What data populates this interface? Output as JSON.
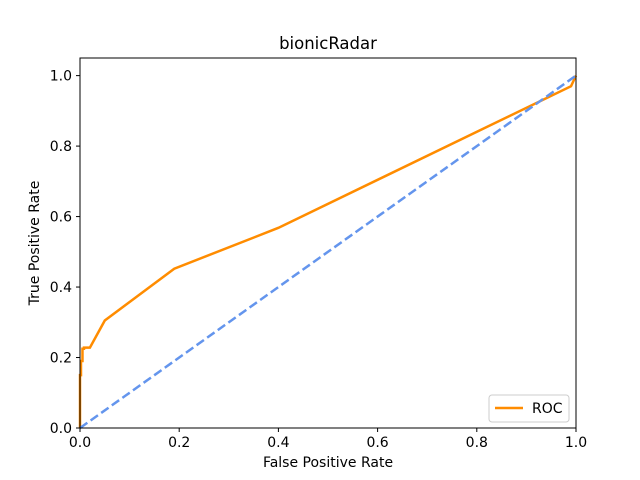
{
  "chart_data": {
    "type": "line",
    "title": "bionicRadar",
    "xlabel": "False Positive Rate",
    "ylabel": "True Positive Rate",
    "xlim": [
      0.0,
      1.0
    ],
    "ylim": [
      0.0,
      1.05
    ],
    "xticks": [
      "0.0",
      "0.2",
      "0.4",
      "0.6",
      "0.8",
      "1.0"
    ],
    "yticks": [
      "0.0",
      "0.2",
      "0.4",
      "0.6",
      "0.8",
      "1.0"
    ],
    "grid": false,
    "legend_position": "lower right",
    "series": [
      {
        "name": "ROC",
        "color": "#ff8c00",
        "style": "solid",
        "x": [
          0.0,
          0.0,
          0.002,
          0.002,
          0.005,
          0.005,
          0.008,
          0.008,
          0.02,
          0.05,
          0.19,
          0.4,
          0.99,
          0.995,
          1.0
        ],
        "y": [
          0.0,
          0.15,
          0.15,
          0.19,
          0.19,
          0.225,
          0.225,
          0.228,
          0.228,
          0.305,
          0.452,
          0.568,
          0.97,
          0.985,
          1.0
        ]
      },
      {
        "name": "",
        "color": "#6495ed",
        "style": "dashed",
        "x": [
          0.0,
          1.0
        ],
        "y": [
          0.0,
          1.0
        ]
      }
    ]
  }
}
